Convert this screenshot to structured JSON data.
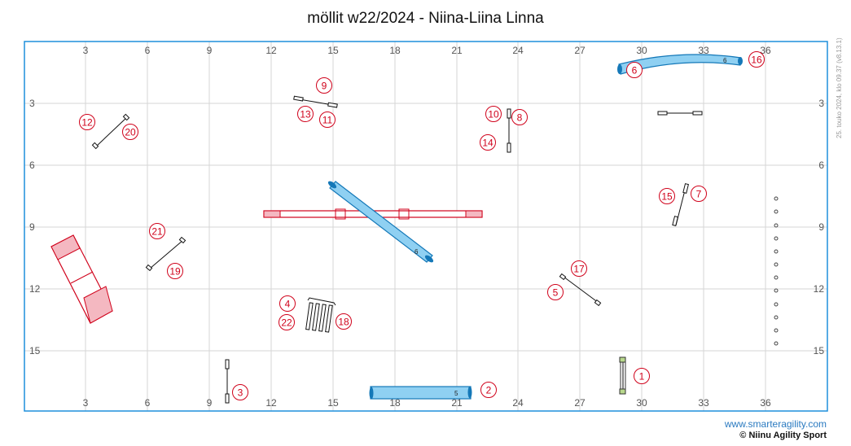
{
  "title": "möllit w22/2024 - Niina-Liina Linna",
  "side_note": "25. touko 2024, klo 09.37 (v8.13.1)",
  "footer": {
    "website": "www.smarteragility.com",
    "copyright": "© Niinu Agility Sport"
  },
  "axes": {
    "x_ticks": [
      "3",
      "6",
      "9",
      "12",
      "15",
      "18",
      "21",
      "24",
      "27",
      "30",
      "33",
      "36"
    ],
    "y_ticks": [
      "3",
      "6",
      "9",
      "12",
      "15"
    ]
  },
  "colors": {
    "frame": "#1e8fdc",
    "grid": "#d0d0d0",
    "number": "#d0021b",
    "tunnel_fill": "#8fd0f2",
    "tunnel_edge": "#1478b8",
    "contact_red": "#d0021b",
    "contact_zone": "#f4b8c1",
    "table_green": "#b8d88c"
  },
  "tunnels": [
    {
      "label": "6"
    },
    {
      "label": "6"
    },
    {
      "label": "5"
    }
  ],
  "numbers": [
    {
      "text": "1"
    },
    {
      "text": "2"
    },
    {
      "text": "3"
    },
    {
      "text": "4"
    },
    {
      "text": "5"
    },
    {
      "text": "6"
    },
    {
      "text": "7"
    },
    {
      "text": "8"
    },
    {
      "text": "9"
    },
    {
      "text": "10"
    },
    {
      "text": "11"
    },
    {
      "text": "12"
    },
    {
      "text": "13"
    },
    {
      "text": "14"
    },
    {
      "text": "15"
    },
    {
      "text": "16"
    },
    {
      "text": "17"
    },
    {
      "text": "18"
    },
    {
      "text": "19"
    },
    {
      "text": "20"
    },
    {
      "text": "21"
    },
    {
      "text": "22"
    }
  ]
}
